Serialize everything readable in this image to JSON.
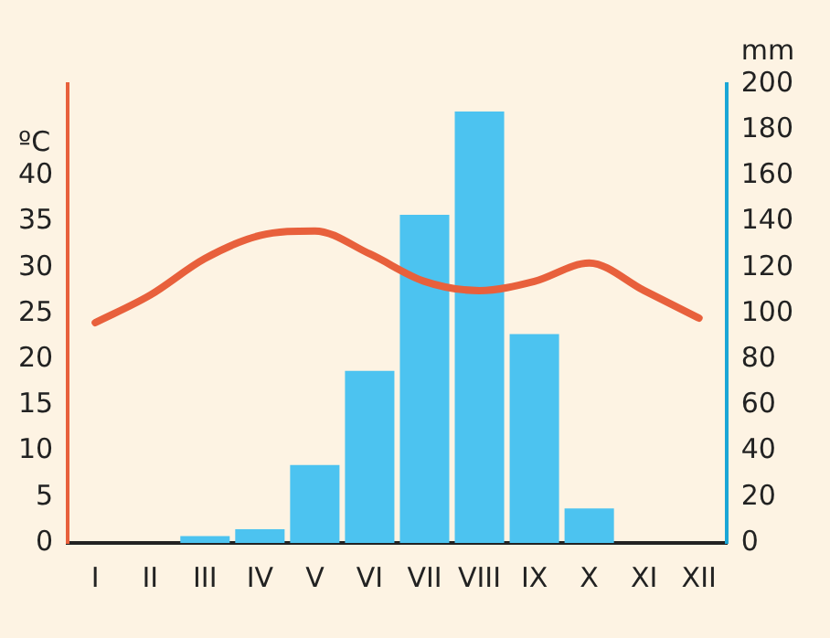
{
  "chart_data": {
    "type": "bar",
    "ylabel": "ºC",
    "y2label": "mm",
    "categories": [
      "I",
      "II",
      "III",
      "IV",
      "V",
      "VI",
      "VII",
      "VIII",
      "IX",
      "X",
      "XI",
      "XII"
    ],
    "series": [
      {
        "axis": "y2",
        "color": "#4cc3f0",
        "values": [
          0,
          0,
          3,
          6,
          34,
          75,
          143,
          188,
          91,
          15,
          0,
          0
        ]
      },
      {
        "type": "line",
        "axis": "y",
        "color": "#e8603c",
        "values": [
          24,
          27,
          31,
          33.5,
          34,
          31.5,
          28.5,
          27.5,
          28.5,
          30.5,
          27.5,
          24.5
        ]
      }
    ],
    "ylim": [
      0,
      50
    ],
    "yticks": [
      0,
      5,
      10,
      15,
      20,
      25,
      30,
      35,
      40
    ],
    "y2lim": [
      0,
      200
    ],
    "y2ticks": [
      0,
      20,
      40,
      60,
      80,
      100,
      120,
      140,
      160,
      180,
      200
    ]
  }
}
